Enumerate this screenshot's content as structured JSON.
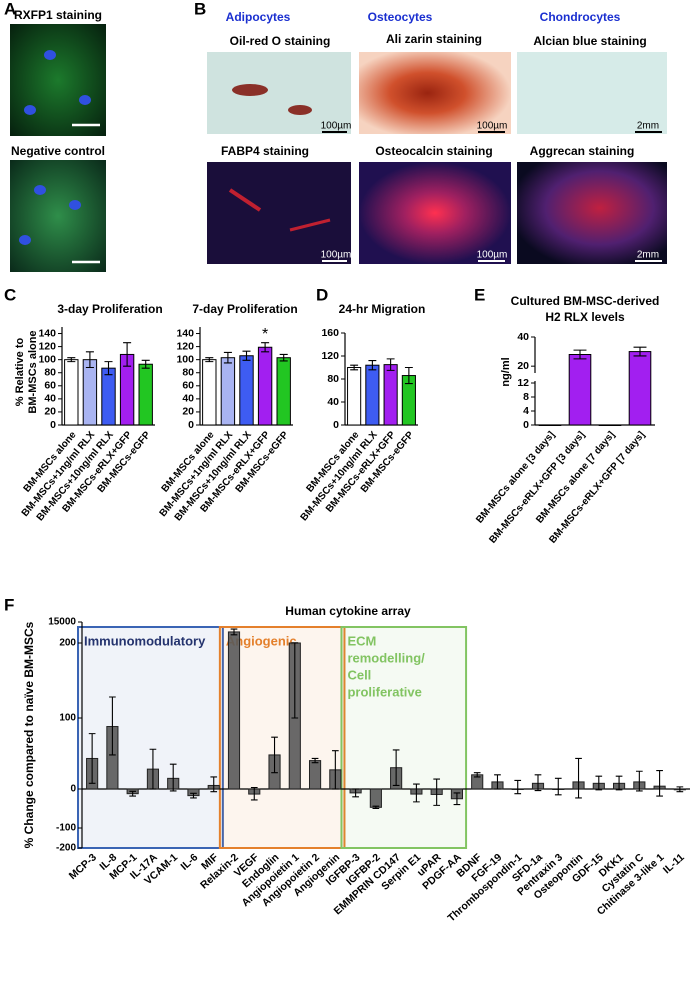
{
  "panel_labels": [
    "A",
    "B",
    "C",
    "D",
    "E",
    "F"
  ],
  "panel_a": {
    "images": [
      {
        "label": "RXFP1 staining"
      },
      {
        "label": "Negative control"
      }
    ]
  },
  "panel_b": {
    "columns": [
      "Adipocytes",
      "Osteocytes",
      "Chondrocytes"
    ],
    "images": [
      {
        "label": "Oil-red O staining",
        "scale_bar": "100µm"
      },
      {
        "label": "Ali zarin staining",
        "scale_bar": "100µm"
      },
      {
        "label": "Alcian blue staining",
        "scale_bar": "2mm"
      },
      {
        "label": "FABP4 staining",
        "scale_bar": "100µm"
      },
      {
        "label": "Osteocalcin staining",
        "scale_bar": "100µm"
      },
      {
        "label": "Aggrecan staining",
        "scale_bar": "2mm"
      }
    ]
  },
  "chart_data": [
    {
      "type": "bar",
      "title": "3-day Proliferation",
      "ylabel": [
        "% Relative to",
        "BM-MSCs alone"
      ],
      "categories": [
        "BM-MSCs alone",
        "BM-MSCs+1ng/ml RLX",
        "BM-MSCs+10ng/ml RLX",
        "BM-MSCs-eRLX+GFP",
        "BM-MSCs-eGFP"
      ],
      "values": [
        100,
        100,
        87,
        108,
        93
      ],
      "errors": [
        3,
        12,
        10,
        18,
        6
      ],
      "colors": [
        "#ffffff",
        "#a9b4f2",
        "#3e5cf2",
        "#a21ff0",
        "#22c622"
      ],
      "ylim": [
        0,
        150
      ],
      "yticks": [
        0,
        20,
        40,
        60,
        80,
        100,
        120,
        140
      ]
    },
    {
      "type": "bar",
      "title": "7-day Proliferation",
      "categories": [
        "BM-MSCs alone",
        "BM-MSCs+1ng/ml RLX",
        "BM-MSCs+10ng/ml RLX",
        "BM-MSCs-eRLX+GFP",
        "BM-MSCs-eGFP"
      ],
      "values": [
        100,
        103,
        106,
        119,
        103
      ],
      "errors": [
        3,
        8,
        7,
        7,
        5
      ],
      "significance": [
        null,
        null,
        null,
        "*",
        null
      ],
      "colors": [
        "#ffffff",
        "#a9b4f2",
        "#3e5cf2",
        "#a21ff0",
        "#22c622"
      ],
      "ylim": [
        0,
        150
      ],
      "yticks": [
        0,
        20,
        40,
        60,
        80,
        100,
        120,
        140
      ]
    },
    {
      "type": "bar",
      "title": "24-hr Migration",
      "categories": [
        "BM-MSCs alone",
        "BM-MSCs+10ng/ml RLX",
        "BM-MSCs-eRLX+GFP",
        "BM-MSCs-eGFP"
      ],
      "values": [
        100,
        104,
        105,
        86
      ],
      "errors": [
        4,
        8,
        10,
        14
      ],
      "colors": [
        "#ffffff",
        "#3e5cf2",
        "#a21ff0",
        "#22c622"
      ],
      "ylim": [
        0,
        160
      ],
      "yticks": [
        0,
        40,
        80,
        120,
        160
      ]
    },
    {
      "type": "bar",
      "title_lines": [
        "Cultured BM-MSC-derived",
        "H2 RLX levels"
      ],
      "ylabel": [
        "ng/ml"
      ],
      "categories": [
        "BM-MSCs alone [3 days]",
        "BM-MSCs-eRLX+GFP [3 days]",
        "BM-MSCs alone [7 days]",
        "BM-MSCs-eRLX+GFP [7 days]"
      ],
      "values": [
        0,
        28,
        0,
        30
      ],
      "errors": [
        0,
        3,
        0,
        3
      ],
      "colors": [
        "#ffffff",
        "#a21ff0",
        "#ffffff",
        "#a21ff0"
      ],
      "ylim": [
        0,
        40
      ],
      "ybreak": [
        12,
        16
      ],
      "yticks": [
        0,
        4,
        8,
        12,
        20,
        40
      ]
    },
    {
      "type": "bar",
      "title": "Human cytokine array",
      "ylabel": [
        "% Change compared to naïve BM-MSCs"
      ],
      "categories": [
        "MCP-3",
        "IL-8",
        "MCP-1",
        "IL-17A",
        "VCAM-1",
        "IL-6",
        "MIF",
        "Relaxin-2",
        "VEGF",
        "Endoglin",
        "Angiopoietin 1",
        "Angiopoietin 2",
        "Angiogenin",
        "IGFBP-3",
        "IGFBP-2",
        "EMMPRIN CD147",
        "Serpin E1",
        "uPAR",
        "PDGF-AA",
        "BDNF",
        "FGF-19",
        "Thrombospondin-1",
        "SFD-1a",
        "Pentraxin 3",
        "Osteopontin",
        "GDF-15",
        "DKK1",
        "Cystatin C",
        "Chitinase 3-like 1",
        "IL-11"
      ],
      "values": [
        43,
        88,
        -12,
        28,
        15,
        -17,
        5,
        8000,
        -13,
        48,
        200,
        40,
        27,
        -10,
        -47,
        30,
        -13,
        -14,
        -25,
        20,
        10,
        0,
        8,
        0,
        10,
        8,
        8,
        10,
        4,
        -2
      ],
      "errors": [
        35,
        40,
        6,
        28,
        20,
        6,
        12,
        2000,
        15,
        25,
        100,
        3,
        27,
        10,
        3,
        25,
        20,
        28,
        15,
        3,
        10,
        12,
        12,
        15,
        33,
        10,
        10,
        15,
        22,
        5
      ],
      "color": "#595959",
      "ylim": [
        -200,
        15000
      ],
      "yticks": [
        -200,
        -100,
        0,
        100,
        200,
        15000
      ],
      "groups": [
        {
          "label": [
            "Immunomodulatory"
          ],
          "color": "#3a64b4",
          "first": 0,
          "last": 6
        },
        {
          "label": [
            "Angiogenic"
          ],
          "color": "#e4802c",
          "first": 7,
          "last": 12
        },
        {
          "label": [
            "ECM",
            "remodelling/",
            "Cell",
            "proliferative"
          ],
          "color": "#82c462",
          "first": 13,
          "last": 18
        }
      ]
    }
  ]
}
